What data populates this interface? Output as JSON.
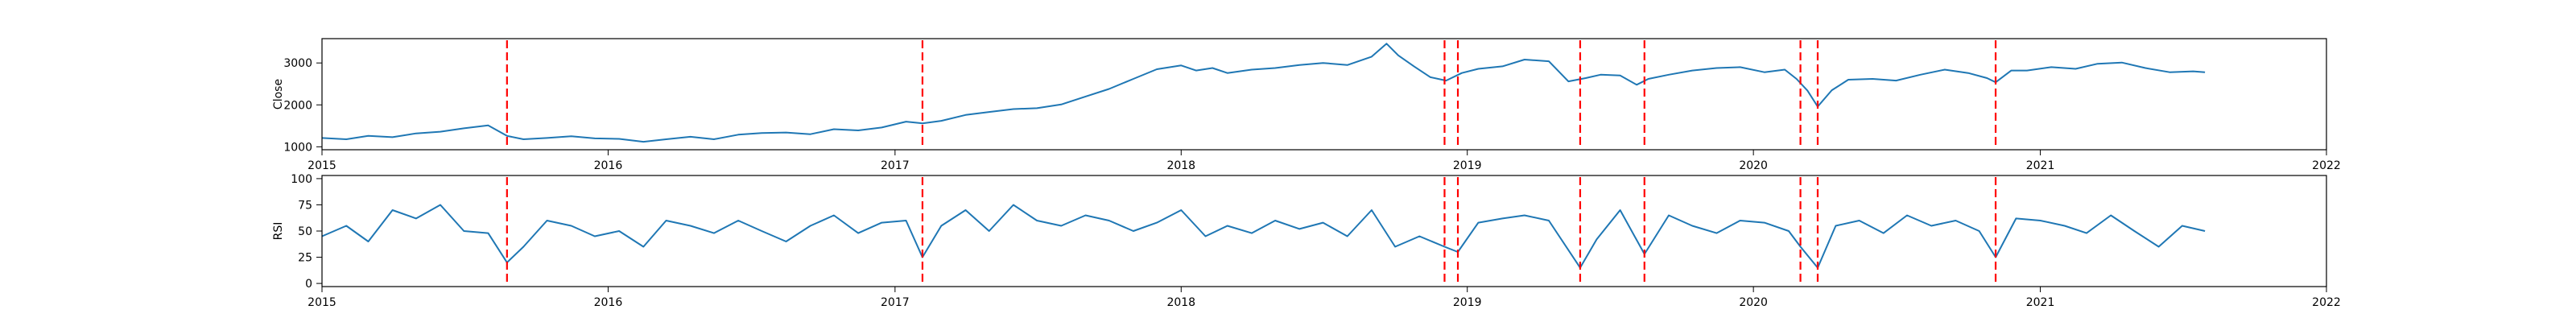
{
  "chart_data": [
    {
      "type": "line",
      "title": "",
      "xlabel": "",
      "ylabel": "Close",
      "xlim": [
        "2015-01-01",
        "2022-01-01"
      ],
      "ylim": [
        930,
        3580
      ],
      "x_ticks": [
        "2015",
        "2016",
        "2017",
        "2018",
        "2019",
        "2020",
        "2021",
        "2022"
      ],
      "y_ticks": [
        "1000",
        "2000",
        "3000"
      ],
      "y_tick_values": [
        1000,
        2000,
        3000
      ],
      "grid": false,
      "series": [
        {
          "color": "#1f77b4",
          "x": [
            "2015-01-01",
            "2015-02-01",
            "2015-03-01",
            "2015-04-01",
            "2015-05-01",
            "2015-06-01",
            "2015-07-01",
            "2015-08-01",
            "2015-08-25",
            "2015-09-15",
            "2015-10-15",
            "2015-11-15",
            "2015-12-15",
            "2016-01-15",
            "2016-02-15",
            "2016-03-15",
            "2016-04-15",
            "2016-05-15",
            "2016-06-15",
            "2016-07-15",
            "2016-08-15",
            "2016-09-15",
            "2016-10-15",
            "2016-11-15",
            "2016-12-15",
            "2017-01-15",
            "2017-02-05",
            "2017-03-01",
            "2017-04-01",
            "2017-05-01",
            "2017-06-01",
            "2017-07-01",
            "2017-08-01",
            "2017-09-01",
            "2017-10-01",
            "2017-11-01",
            "2017-12-01",
            "2018-01-01",
            "2018-01-20",
            "2018-02-10",
            "2018-03-01",
            "2018-04-01",
            "2018-05-01",
            "2018-06-01",
            "2018-07-01",
            "2018-08-01",
            "2018-09-01",
            "2018-09-20",
            "2018-10-05",
            "2018-10-25",
            "2018-11-15",
            "2018-12-05",
            "2018-12-25",
            "2019-01-15",
            "2019-02-15",
            "2019-03-15",
            "2019-04-15",
            "2019-05-10",
            "2019-06-01",
            "2019-06-20",
            "2019-07-15",
            "2019-08-05",
            "2019-08-20",
            "2019-09-15",
            "2019-10-15",
            "2019-11-15",
            "2019-12-15",
            "2020-01-15",
            "2020-02-10",
            "2020-02-25",
            "2020-03-10",
            "2020-03-23",
            "2020-04-10",
            "2020-05-01",
            "2020-06-01",
            "2020-07-01",
            "2020-08-01",
            "2020-09-01",
            "2020-10-01",
            "2020-10-25",
            "2020-11-05",
            "2020-11-25",
            "2020-12-15",
            "2021-01-15",
            "2021-02-15",
            "2021-03-15",
            "2021-04-15",
            "2021-05-15",
            "2021-06-15",
            "2021-07-15",
            "2021-07-30"
          ],
          "values": [
            1210,
            1180,
            1260,
            1230,
            1320,
            1360,
            1440,
            1510,
            1260,
            1180,
            1210,
            1250,
            1200,
            1190,
            1120,
            1180,
            1240,
            1180,
            1290,
            1330,
            1340,
            1300,
            1420,
            1390,
            1460,
            1600,
            1560,
            1620,
            1760,
            1830,
            1900,
            1920,
            2010,
            2200,
            2380,
            2620,
            2850,
            2940,
            2820,
            2880,
            2760,
            2840,
            2880,
            2950,
            3000,
            2950,
            3150,
            3460,
            3180,
            2920,
            2660,
            2580,
            2760,
            2860,
            2920,
            3080,
            3040,
            2560,
            2640,
            2720,
            2700,
            2480,
            2620,
            2720,
            2820,
            2880,
            2900,
            2780,
            2840,
            2620,
            2340,
            1960,
            2350,
            2600,
            2620,
            2580,
            2720,
            2840,
            2760,
            2640,
            2540,
            2820,
            2820,
            2900,
            2860,
            2980,
            3010,
            2880,
            2780,
            2800,
            2780
          ]
        }
      ],
      "vlines": {
        "color": "#ff0000",
        "dates": [
          "2015-08-25",
          "2017-02-05",
          "2018-12-03",
          "2018-12-20",
          "2019-05-25",
          "2019-08-15",
          "2020-03-01",
          "2020-03-23",
          "2020-11-05"
        ]
      }
    },
    {
      "type": "line",
      "title": "",
      "xlabel": "",
      "ylabel": "RSI",
      "xlim": [
        "2015-01-01",
        "2022-01-01"
      ],
      "ylim": [
        -3,
        103
      ],
      "x_ticks": [
        "2015",
        "2016",
        "2017",
        "2018",
        "2019",
        "2020",
        "2021",
        "2022"
      ],
      "y_ticks": [
        "0",
        "25",
        "50",
        "75",
        "100"
      ],
      "y_tick_values": [
        0,
        25,
        50,
        75,
        100
      ],
      "grid": false,
      "series": [
        {
          "color": "#1f77b4",
          "x": [
            "2015-01-01",
            "2015-02-01",
            "2015-03-01",
            "2015-04-01",
            "2015-05-01",
            "2015-06-01",
            "2015-07-01",
            "2015-08-01",
            "2015-08-25",
            "2015-09-15",
            "2015-10-15",
            "2015-11-15",
            "2015-12-15",
            "2016-01-15",
            "2016-02-15",
            "2016-03-15",
            "2016-04-15",
            "2016-05-15",
            "2016-06-15",
            "2016-07-15",
            "2016-08-15",
            "2016-09-15",
            "2016-10-15",
            "2016-11-15",
            "2016-12-15",
            "2017-01-15",
            "2017-02-05",
            "2017-03-01",
            "2017-04-01",
            "2017-05-01",
            "2017-06-01",
            "2017-07-01",
            "2017-08-01",
            "2017-09-01",
            "2017-10-01",
            "2017-11-01",
            "2017-12-01",
            "2018-01-01",
            "2018-02-01",
            "2018-03-01",
            "2018-04-01",
            "2018-05-01",
            "2018-06-01",
            "2018-07-01",
            "2018-08-01",
            "2018-09-01",
            "2018-10-01",
            "2018-11-01",
            "2018-12-03",
            "2018-12-20",
            "2019-01-15",
            "2019-02-15",
            "2019-03-15",
            "2019-04-15",
            "2019-05-25",
            "2019-06-15",
            "2019-07-15",
            "2019-08-15",
            "2019-09-15",
            "2019-10-15",
            "2019-11-15",
            "2019-12-15",
            "2020-01-15",
            "2020-02-15",
            "2020-03-01",
            "2020-03-23",
            "2020-04-15",
            "2020-05-15",
            "2020-06-15",
            "2020-07-15",
            "2020-08-15",
            "2020-09-15",
            "2020-10-15",
            "2020-11-05",
            "2020-12-01",
            "2021-01-01",
            "2021-02-01",
            "2021-03-01",
            "2021-04-01",
            "2021-05-01",
            "2021-06-01",
            "2021-07-01",
            "2021-07-30"
          ],
          "values": [
            45,
            55,
            40,
            70,
            62,
            75,
            50,
            48,
            20,
            35,
            60,
            55,
            45,
            50,
            35,
            60,
            55,
            48,
            60,
            50,
            40,
            55,
            65,
            48,
            58,
            60,
            25,
            55,
            70,
            50,
            75,
            60,
            55,
            65,
            60,
            50,
            58,
            70,
            45,
            55,
            48,
            60,
            52,
            58,
            45,
            70,
            35,
            45,
            35,
            30,
            58,
            62,
            65,
            60,
            15,
            42,
            70,
            28,
            65,
            55,
            48,
            60,
            58,
            50,
            35,
            15,
            55,
            60,
            48,
            65,
            55,
            60,
            50,
            25,
            62,
            60,
            55,
            48,
            65,
            50,
            35,
            55,
            50
          ]
        }
      ],
      "vlines": {
        "color": "#ff0000",
        "dates": [
          "2015-08-25",
          "2017-02-05",
          "2018-12-03",
          "2018-12-20",
          "2019-05-25",
          "2019-08-15",
          "2020-03-01",
          "2020-03-23",
          "2020-11-05"
        ]
      }
    }
  ]
}
